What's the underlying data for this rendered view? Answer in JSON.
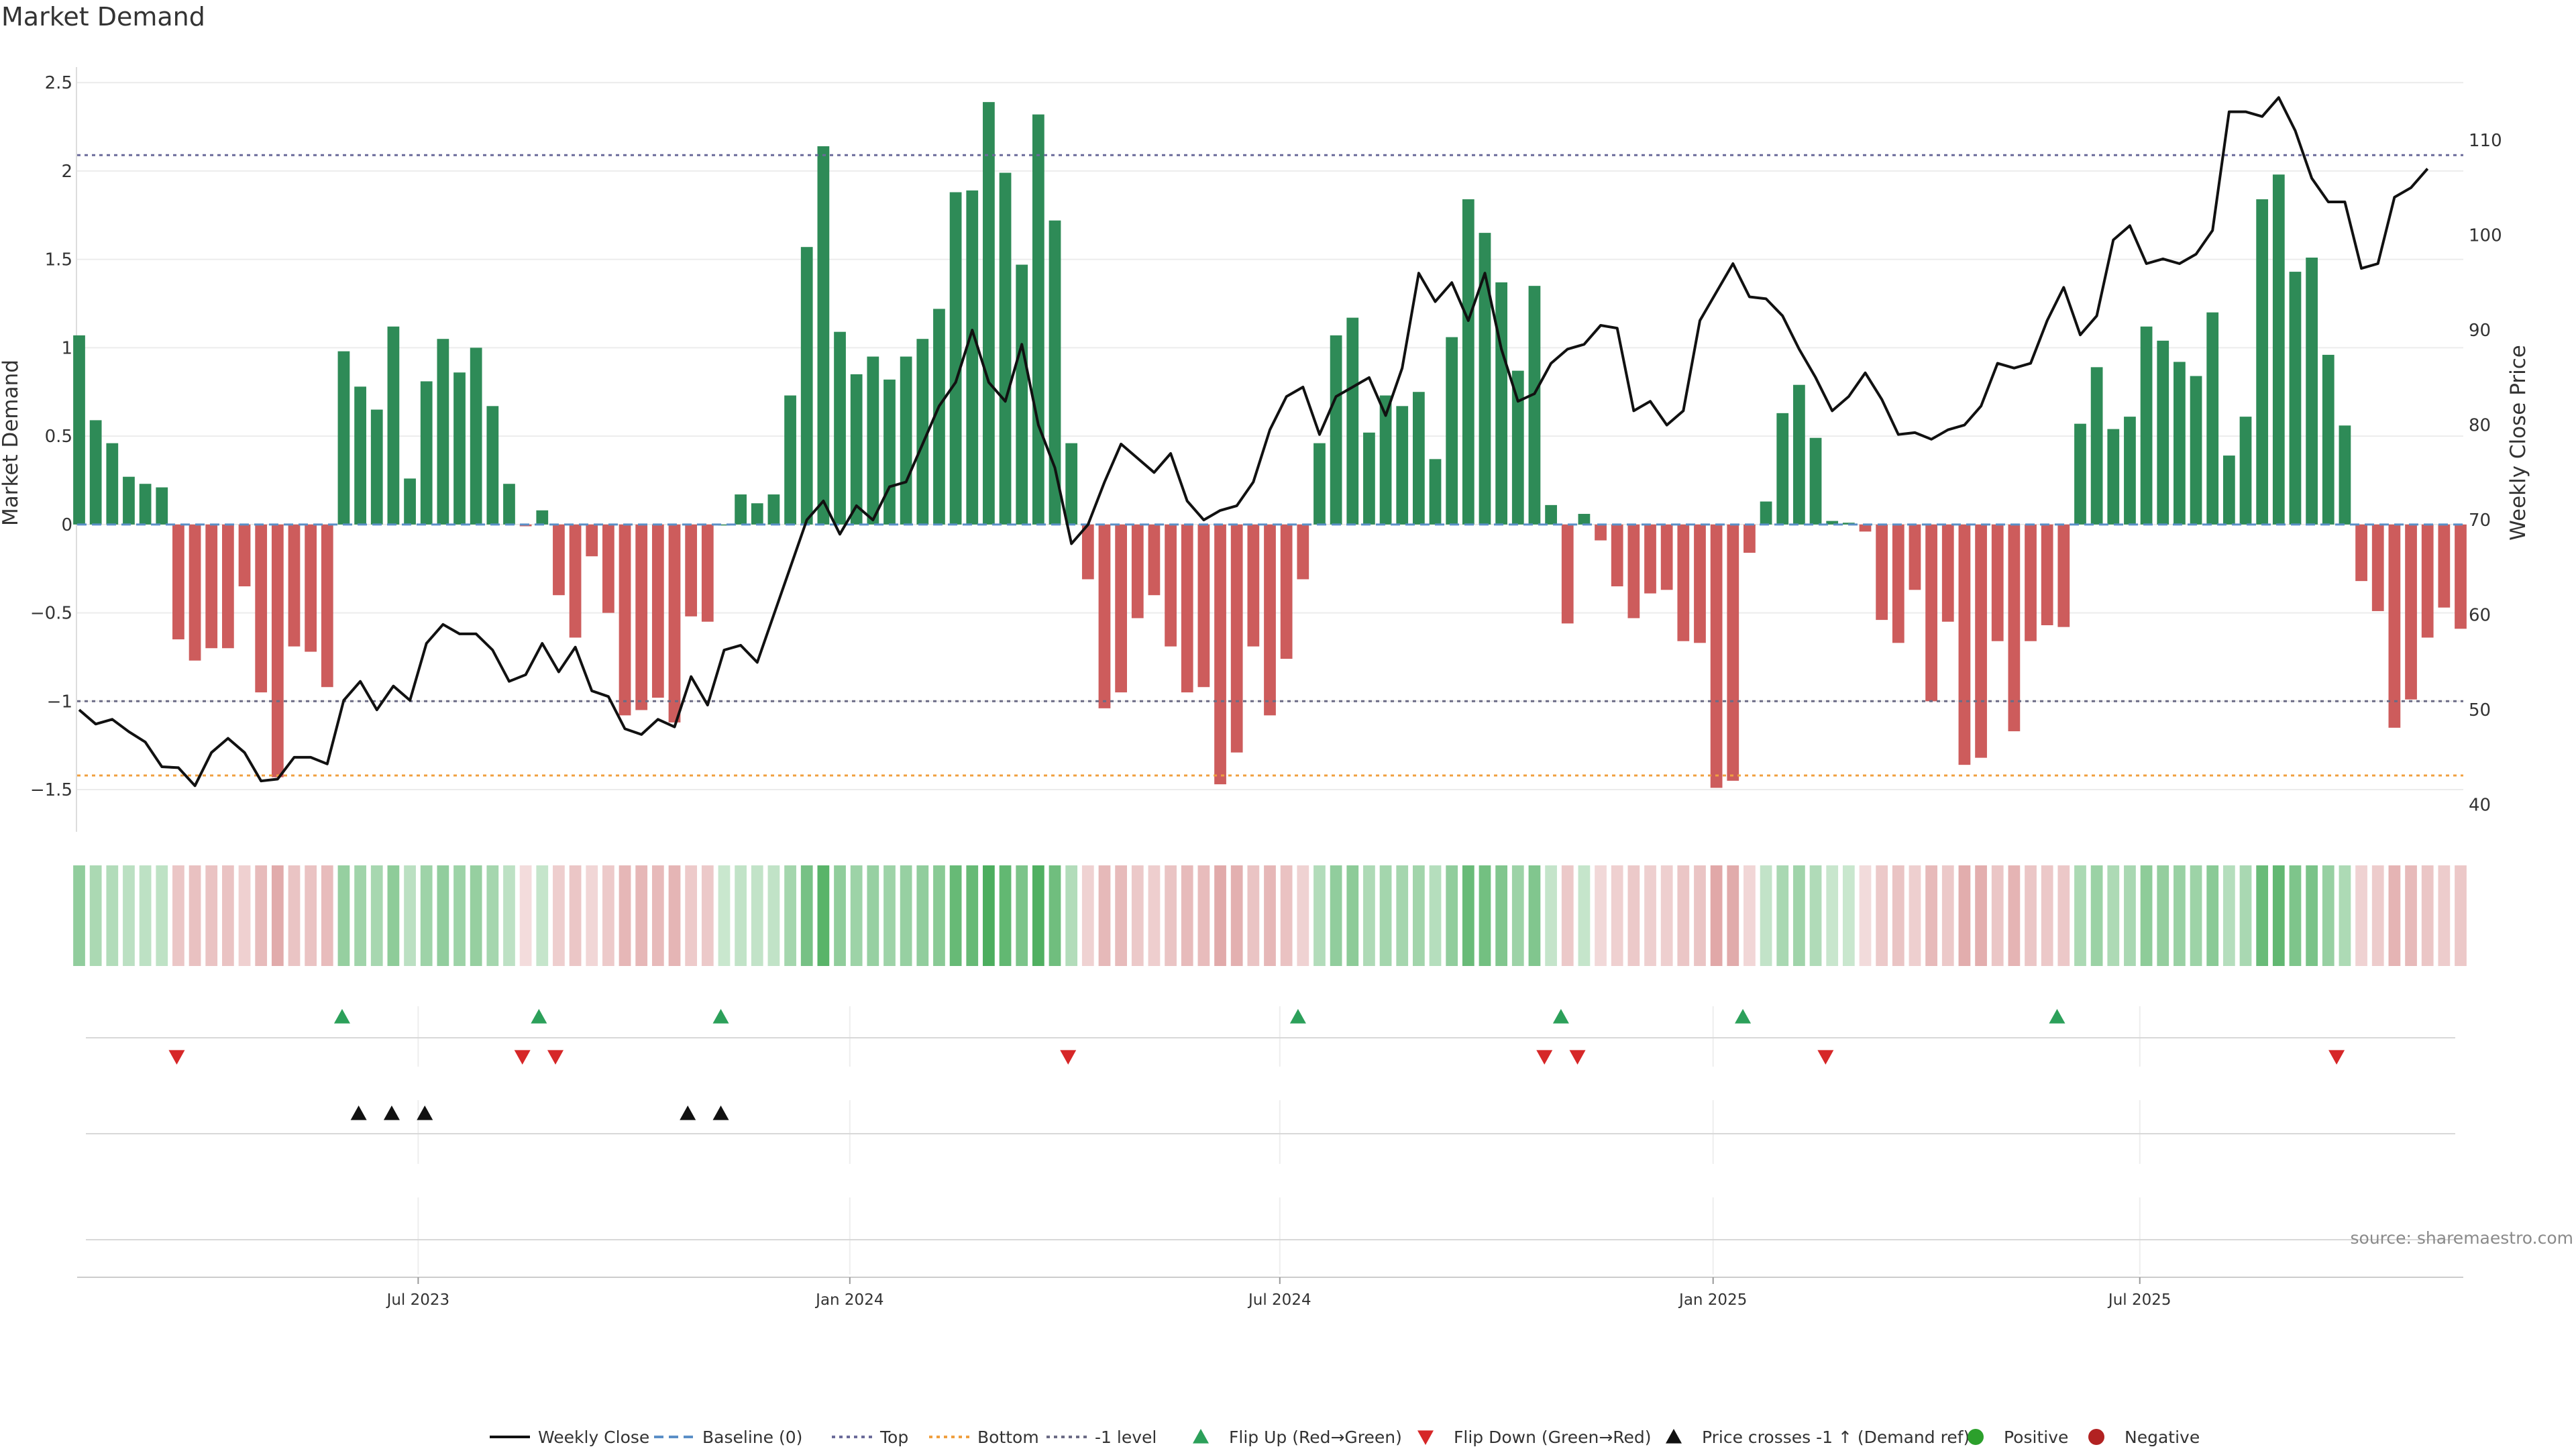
{
  "chart_data": {
    "type": "bar",
    "title": "Market Demand",
    "ylabel": "Market Demand",
    "y2label": "Weekly Close Price",
    "ylim": [
      -1.72,
      2.55
    ],
    "y2lim": [
      37.5,
      117.0
    ],
    "yticks": [
      "2.5",
      "2",
      "1.5",
      "1",
      "0.5",
      "0",
      "−0.5",
      "−1",
      "−1.5"
    ],
    "yticks_values": [
      2.5,
      2,
      1.5,
      1,
      0.5,
      0,
      -0.5,
      -1,
      -1.5
    ],
    "y2ticks": [
      "110",
      "100",
      "90",
      "80",
      "70",
      "60",
      "50",
      "40"
    ],
    "y2ticks_values": [
      110,
      100,
      90,
      80,
      70,
      60,
      50,
      40
    ],
    "xticks": [
      {
        "label": "Jul 2023",
        "week": 20.5
      },
      {
        "label": "Jan 2024",
        "week": 46.6
      },
      {
        "label": "Jul 2024",
        "week": 72.6
      },
      {
        "label": "Jan 2025",
        "week": 98.8
      },
      {
        "label": "Jul 2025",
        "week": 124.6
      }
    ],
    "top_level": 2.09,
    "minus1_level": -1.0,
    "bottom_level": -1.42,
    "demand": [
      1.07,
      0.59,
      0.46,
      0.27,
      0.23,
      0.21,
      -0.65,
      -0.77,
      -0.7,
      -0.7,
      -0.35,
      -0.95,
      -1.43,
      -0.69,
      -0.72,
      -0.92,
      0.98,
      0.78,
      0.65,
      1.12,
      0.26,
      0.81,
      1.05,
      0.86,
      1.0,
      0.67,
      0.23,
      -0.01,
      0.08,
      -0.4,
      -0.64,
      -0.18,
      -0.5,
      -1.08,
      -1.05,
      -0.98,
      -1.12,
      -0.52,
      -0.55,
      0.0,
      0.17,
      0.12,
      0.17,
      0.73,
      1.57,
      2.14,
      1.09,
      0.85,
      0.95,
      0.82,
      0.95,
      1.05,
      1.22,
      1.88,
      1.89,
      2.39,
      1.99,
      1.47,
      2.32,
      1.72,
      0.46,
      -0.31,
      -1.04,
      -0.95,
      -0.53,
      -0.4,
      -0.69,
      -0.95,
      -0.92,
      -1.47,
      -1.29,
      -0.69,
      -1.08,
      -0.76,
      -0.31,
      0.46,
      1.07,
      1.17,
      0.52,
      0.73,
      0.67,
      0.75,
      0.37,
      1.06,
      1.84,
      1.65,
      1.37,
      0.87,
      1.35,
      0.11,
      -0.56,
      0.06,
      -0.09,
      -0.35,
      -0.53,
      -0.39,
      -0.37,
      -0.66,
      -0.67,
      -1.49,
      -1.45,
      -0.16,
      0.13,
      0.63,
      0.79,
      0.49,
      0.02,
      0.01,
      -0.04,
      -0.54,
      -0.67,
      -0.37,
      -1.0,
      -0.55,
      -1.36,
      -1.32,
      -0.66,
      -1.17,
      -0.66,
      -0.57,
      -0.58,
      0.57,
      0.89,
      0.54,
      0.61,
      1.12,
      1.04,
      0.92,
      0.84,
      1.2,
      0.39,
      0.61,
      1.84,
      1.98,
      1.43,
      1.51,
      0.96,
      0.56,
      -0.32,
      -0.49,
      -1.15,
      -0.99,
      -0.64,
      -0.47,
      -0.59
    ],
    "price": [
      50.0,
      48.5,
      49.0,
      47.7,
      46.6,
      44.0,
      43.9,
      42.0,
      45.5,
      47.0,
      45.5,
      42.5,
      42.7,
      45.0,
      45.0,
      44.3,
      51.0,
      53.0,
      50.0,
      52.5,
      51.0,
      57.0,
      59.0,
      58.0,
      58.0,
      56.3,
      53.0,
      53.7,
      57.0,
      54.0,
      56.6,
      52.0,
      51.4,
      48.0,
      47.4,
      49.0,
      48.2,
      53.5,
      50.5,
      56.3,
      56.8,
      55.0,
      60.0,
      65.0,
      70.0,
      72.0,
      68.5,
      71.5,
      70.0,
      73.5,
      74.0,
      78.0,
      82.0,
      84.5,
      90.0,
      84.5,
      82.5,
      88.5,
      80.0,
      75.5,
      67.5,
      69.5,
      74.0,
      78.0,
      76.5,
      75.0,
      77.0,
      72.0,
      70.0,
      71.0,
      71.5,
      74.0,
      79.5,
      83.0,
      84.0,
      79.0,
      83.0,
      84.0,
      85.0,
      81.0,
      86.0,
      96.0,
      93.0,
      95.0,
      91.0,
      96.0,
      88.0,
      82.5,
      83.3,
      86.5,
      88.0,
      88.5,
      90.5,
      90.2,
      81.5,
      82.5,
      80.0,
      81.5,
      91.0,
      94.0,
      97.0,
      93.5,
      93.3,
      91.5,
      88.0,
      85.0,
      81.5,
      83.0,
      85.5,
      82.7,
      79.0,
      79.2,
      78.5,
      79.5,
      80.0,
      82.0,
      86.5,
      86.0,
      86.5,
      91.0,
      94.5,
      89.5,
      91.5,
      99.5,
      101.0,
      97.0,
      97.5,
      97.0,
      98.0,
      100.5,
      113.0,
      113.0,
      112.5,
      114.5,
      111.0,
      106.0,
      103.5,
      103.5,
      96.5,
      97.0,
      104.0,
      105.0,
      107.0
    ],
    "flip_up_weeks": [
      15.9,
      27.8,
      38.8,
      73.7,
      89.6,
      100.6,
      119.6
    ],
    "flip_down_weeks": [
      5.9,
      26.8,
      28.8,
      59.8,
      88.6,
      90.6,
      105.6,
      136.5
    ],
    "price_cross_weeks": [
      16.9,
      18.9,
      20.9,
      36.8,
      38.8
    ],
    "legend": [
      {
        "label": "Weekly Close",
        "symbol": "line",
        "color": "#111111"
      },
      {
        "label": "Baseline (0)",
        "symbol": "dash",
        "color": "#5b8fc7"
      },
      {
        "label": "Top",
        "symbol": "dot",
        "color": "#6b6b9a"
      },
      {
        "label": "Bottom",
        "symbol": "dot",
        "color": "#f0a040"
      },
      {
        "label": "-1 level",
        "symbol": "dot",
        "color": "#6b6b85"
      },
      {
        "label": "Flip Up (Red→Green)",
        "symbol": "tri-up",
        "color": "#2ca05a"
      },
      {
        "label": "Flip Down (Green→Red)",
        "symbol": "tri-down",
        "color": "#d62728"
      },
      {
        "label": "Price crosses -1 ↑ (Demand ref)",
        "symbol": "tri-up",
        "color": "#111111"
      },
      {
        "label": "Positive",
        "symbol": "circle",
        "color": "#2ca02c"
      },
      {
        "label": "Negative",
        "symbol": "circle",
        "color": "#b22222"
      }
    ],
    "source": "source: sharemaestro.com"
  },
  "colors": {
    "positive": "#2e8b57",
    "negative": "#cd5c5c",
    "price_line": "#111111",
    "baseline": "#5b8fc7",
    "top": "#6b6b9a",
    "bottom": "#f0a040",
    "minus1": "#6b6b85",
    "flip_up": "#2ca05a",
    "flip_down": "#d62728",
    "heat_green": "#4cae5e",
    "heat_red": "#d68a8a"
  }
}
